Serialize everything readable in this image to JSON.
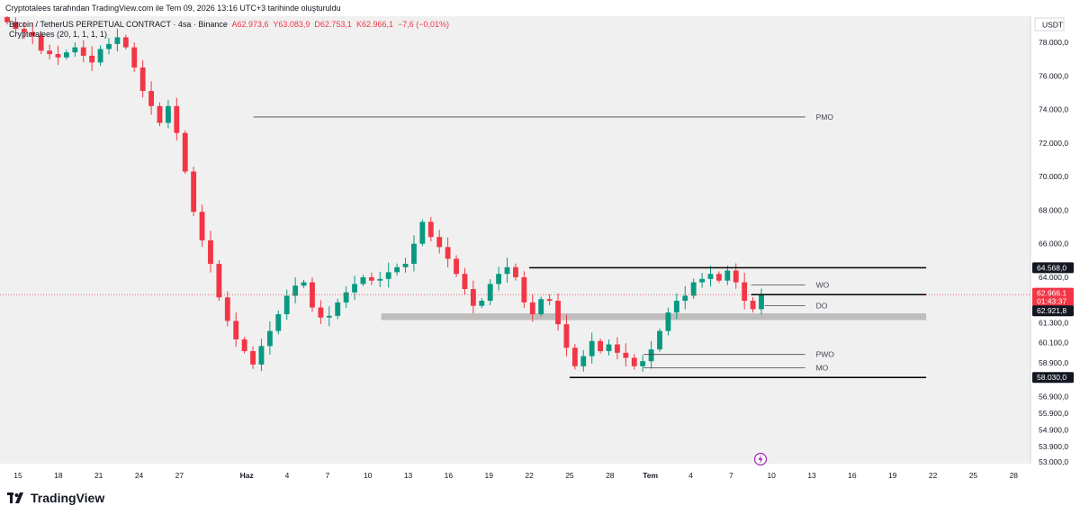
{
  "header": {
    "credit": "Cryptotalees tarafından TradingView.com ile Tem 09, 2026 13:16 UTC+3 tarihinde oluşturuldu"
  },
  "legend": {
    "symbol": "Bitcoin / TetherUS PERPETUAL CONTRACT · 4sa · Binance",
    "open": "A62.973,6",
    "high": "Y63.083,9",
    "low": "D62.753,1",
    "close": "K62.966,1",
    "change": "−7,6 (−0,01%)",
    "indicator": "Cryptotalees  (20, 1, 1, 1, 1)"
  },
  "footer": {
    "brand": "TradingView"
  },
  "chart_data": {
    "type": "candlestick",
    "currency": "USDT",
    "y_ticks": [
      "78.000,0",
      "76.000,0",
      "74.000,0",
      "72.000,0",
      "70.000,0",
      "68.000,0",
      "66.000,0",
      "64.000,0",
      "61.300,0",
      "60.100,0",
      "58.900,0",
      "56.900,0",
      "55.900,0",
      "54.900,0",
      "53.900,0",
      "53.000,0"
    ],
    "y_tick_values": [
      78000,
      76000,
      74000,
      72000,
      70000,
      68000,
      66000,
      64000,
      61300,
      60100,
      58900,
      56900,
      55900,
      54900,
      53900,
      53000
    ],
    "ylim": [
      52300,
      79000
    ],
    "x_ticks": [
      {
        "label": "15",
        "day": 0
      },
      {
        "label": "18",
        "day": 3
      },
      {
        "label": "21",
        "day": 6
      },
      {
        "label": "24",
        "day": 9
      },
      {
        "label": "27",
        "day": 12
      },
      {
        "label": "Haz",
        "day": 17,
        "bold": true
      },
      {
        "label": "4",
        "day": 20
      },
      {
        "label": "7",
        "day": 23
      },
      {
        "label": "10",
        "day": 26
      },
      {
        "label": "13",
        "day": 29
      },
      {
        "label": "16",
        "day": 32
      },
      {
        "label": "19",
        "day": 35
      },
      {
        "label": "22",
        "day": 38
      },
      {
        "label": "25",
        "day": 41
      },
      {
        "label": "28",
        "day": 44
      },
      {
        "label": "Tem",
        "day": 47,
        "bold": true
      },
      {
        "label": "4",
        "day": 50
      },
      {
        "label": "7",
        "day": 53
      },
      {
        "label": "10",
        "day": 56
      },
      {
        "label": "13",
        "day": 59
      },
      {
        "label": "16",
        "day": 62
      },
      {
        "label": "19",
        "day": 65
      },
      {
        "label": "22",
        "day": 68
      },
      {
        "label": "25",
        "day": 71
      },
      {
        "label": "28",
        "day": 74
      }
    ],
    "levels": [
      {
        "name": "PMO",
        "price": 73550,
        "from_day": 17.5,
        "to_day": 58.5,
        "label": "PMO",
        "style": "thin"
      },
      {
        "name": "Range high",
        "price": 64568,
        "from_day": 38,
        "to_day": 67.5,
        "style": "thick"
      },
      {
        "name": "WO",
        "price": 63550,
        "from_day": 54.5,
        "to_day": 58.5,
        "label": "WO",
        "style": "thin"
      },
      {
        "name": "Weekly high",
        "price": 62966,
        "from_day": 54.5,
        "to_day": 67.5,
        "style": "thick"
      },
      {
        "name": "DO",
        "price": 62300,
        "from_day": 55.5,
        "to_day": 58.5,
        "label": "DO",
        "style": "thin"
      },
      {
        "name": "PWO",
        "price": 59400,
        "from_day": 46.5,
        "to_day": 58.5,
        "label": "PWO",
        "style": "thin"
      },
      {
        "name": "MO",
        "price": 58600,
        "from_day": 46.5,
        "to_day": 58.5,
        "label": "MO",
        "style": "thin"
      },
      {
        "name": "Range low",
        "price": 58030,
        "from_day": 41,
        "to_day": 67.5,
        "style": "thick"
      }
    ],
    "zone": {
      "from_price": 61450,
      "to_price": 61850,
      "from_day": 27,
      "to_day": 67.5
    },
    "price_tags": [
      {
        "text": "64.568,0",
        "price": 64568,
        "style": "dark"
      },
      {
        "text": "62.966,1",
        "price": 63050,
        "style": "red"
      },
      {
        "text": "01:43:37",
        "price": 62580,
        "style": "red"
      },
      {
        "text": "62.921,8",
        "price": 62000,
        "style": "dark"
      },
      {
        "text": "58.030,0",
        "price": 58030,
        "style": "dark"
      }
    ],
    "current_price": 62966.1,
    "closes": [
      79200,
      78800,
      78600,
      78400,
      77500,
      77300,
      77100,
      77400,
      77700,
      77200,
      76800,
      77600,
      77900,
      78300,
      77700,
      76500,
      75100,
      74200,
      73200,
      74200,
      72600,
      70300,
      67900,
      66200,
      64800,
      62800,
      61400,
      60300,
      59600,
      58800,
      59900,
      60800,
      61800,
      62900,
      63500,
      63700,
      62200,
      61600,
      61700,
      62500,
      63100,
      63600,
      64000,
      63800,
      63900,
      64300,
      64600,
      64800,
      66000,
      67300,
      66400,
      65800,
      65100,
      64200,
      63300,
      62300,
      62600,
      63600,
      64200,
      64600,
      64000,
      62500,
      61800,
      62700,
      62600,
      61200,
      59800,
      58700,
      59300,
      60200,
      59600,
      60000,
      59500,
      59200,
      58700,
      59000,
      59700,
      60800,
      61900,
      62600,
      62900,
      63700,
      63900,
      64200,
      63800,
      64400,
      63700,
      62600,
      62100,
      62966
    ]
  }
}
